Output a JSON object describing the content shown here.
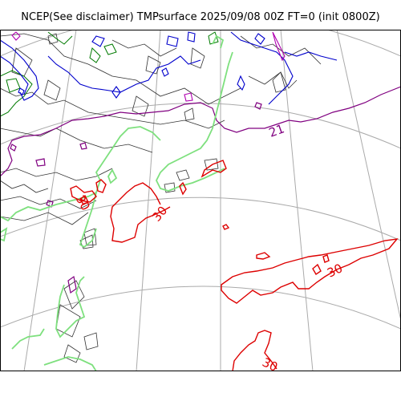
{
  "title": "NCEP(See disclaimer) TMPsurface 2025/09/08 00Z FT=0 (init 0800Z)",
  "colors": {
    "grid": "#aaaaaa",
    "frame": "#000000",
    "isotherm_black": "#333333",
    "isotherm_darkgreen": "#007a00",
    "isotherm_blue": "#0000cc",
    "isotherm_magenta": "#b000b0",
    "isotherm_purple": "#800080",
    "isotherm_lightgreen": "#7ee07e",
    "isotherm_red": "#dd0000"
  },
  "contour_labels": [
    {
      "text": "21",
      "color": "purple"
    },
    {
      "text": "30",
      "color": "red"
    },
    {
      "text": "30",
      "color": "red"
    },
    {
      "text": "30",
      "color": "red"
    },
    {
      "text": "30",
      "color": "red"
    }
  ]
}
